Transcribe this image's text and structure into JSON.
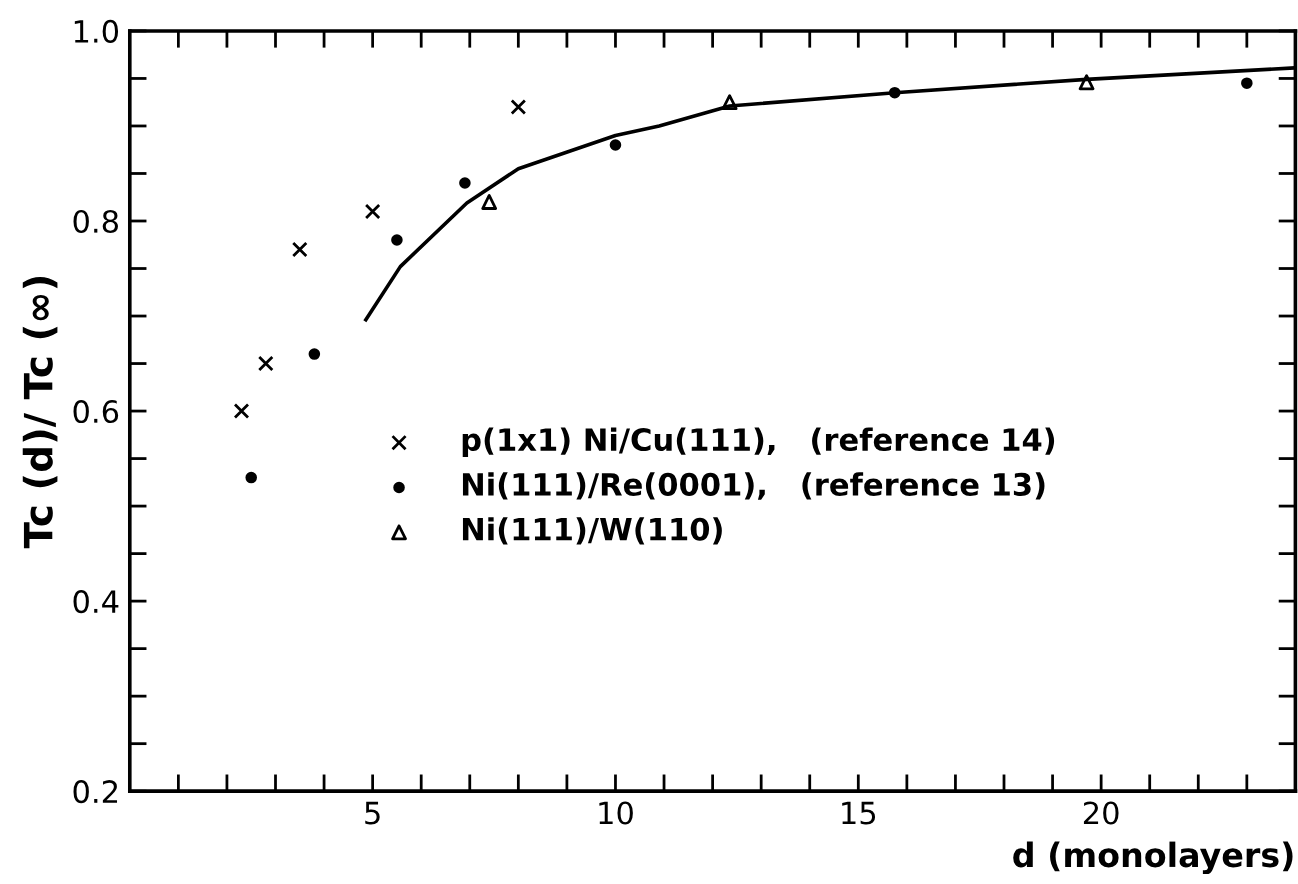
{
  "chart_data": {
    "type": "scatter",
    "xlabel": "d (monolayers)",
    "ylabel": "Tc (d)/ Tc (∞)",
    "xlim": [
      0,
      24
    ],
    "ylim": [
      0.2,
      1.0
    ],
    "xticks": [
      {
        "value": 1,
        "label": null
      },
      {
        "value": 2,
        "label": null
      },
      {
        "value": 3,
        "label": null
      },
      {
        "value": 4,
        "label": null
      },
      5,
      {
        "value": 6,
        "label": null
      },
      {
        "value": 7,
        "label": null
      },
      {
        "value": 8,
        "label": null
      },
      {
        "value": 9,
        "label": null
      },
      10,
      {
        "value": 11,
        "label": null
      },
      {
        "value": 12,
        "label": null
      },
      {
        "value": 13,
        "label": null
      },
      {
        "value": 14,
        "label": null
      },
      15,
      {
        "value": 16,
        "label": null
      },
      {
        "value": 17,
        "label": null
      },
      {
        "value": 18,
        "label": null
      },
      {
        "value": 19,
        "label": null
      },
      20,
      {
        "value": 21,
        "label": null
      },
      {
        "value": 22,
        "label": null
      },
      {
        "value": 23,
        "label": null
      }
    ],
    "yticks": [
      {
        "value": 0.2,
        "label": "0.2"
      },
      {
        "value": 0.25,
        "label": null
      },
      {
        "value": 0.3,
        "label": null
      },
      {
        "value": 0.35,
        "label": null
      },
      {
        "value": 0.4,
        "label": "0.4"
      },
      {
        "value": 0.45,
        "label": null
      },
      {
        "value": 0.5,
        "label": null
      },
      {
        "value": 0.55,
        "label": null
      },
      {
        "value": 0.6,
        "label": "0.6"
      },
      {
        "value": 0.65,
        "label": null
      },
      {
        "value": 0.7,
        "label": null
      },
      {
        "value": 0.75,
        "label": null
      },
      {
        "value": 0.8,
        "label": "0.8"
      },
      {
        "value": 0.85,
        "label": null
      },
      {
        "value": 0.9,
        "label": null
      },
      {
        "value": 0.95,
        "label": null
      },
      {
        "value": 1.0,
        "label": "1.0"
      }
    ],
    "grid": false,
    "legend": "center",
    "series": [
      {
        "name": "p(1x1) Ni/Cu(111),   (reference 14)",
        "color": "#000000",
        "marker": "cross",
        "x": [
          2.3,
          2.8,
          3.5,
          5.0,
          8.0
        ],
        "values": [
          0.6,
          0.65,
          0.77,
          0.81,
          0.92
        ]
      },
      {
        "name": "Ni(111)/Re(0001),   (reference 13)",
        "color": "#000000",
        "marker": "circle",
        "x": [
          2.5,
          3.8,
          5.5,
          6.9,
          10.0,
          15.75,
          23.0
        ],
        "values": [
          0.53,
          0.66,
          0.78,
          0.84,
          0.88,
          0.935,
          0.945
        ]
      },
      {
        "name": "Ni(111)/W(110)",
        "color": "#000000",
        "marker": "triangle",
        "x": [
          7.4,
          12.35,
          19.7
        ],
        "values": [
          0.82,
          0.925,
          0.946
        ]
      },
      {
        "type": "line",
        "color": "#000000",
        "marker": "none",
        "line_style": "solid",
        "x": [
          4.86,
          5.57,
          6.94,
          8.0,
          10.0,
          10.9,
          12.35,
          15.75,
          19.7,
          23.95
        ],
        "values": [
          0.696,
          0.752,
          0.819,
          0.855,
          0.89,
          0.9,
          0.921,
          0.935,
          0.949,
          0.961
        ]
      }
    ]
  }
}
